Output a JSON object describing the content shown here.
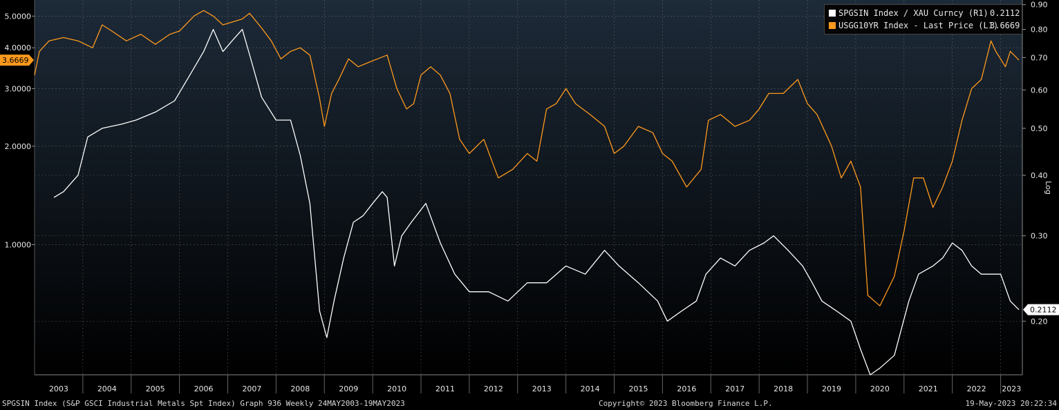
{
  "chart_data": {
    "type": "line",
    "scale": "log",
    "grid": true,
    "legend_position": "top-right",
    "xlim": [
      2003.0,
      2023.45
    ],
    "ylim_left": [
      0.4,
      5.6
    ],
    "ylim_right": [
      0.155,
      0.92
    ],
    "x_ticks": [
      "2003",
      "2004",
      "2005",
      "2006",
      "2007",
      "2008",
      "2009",
      "2010",
      "2011",
      "2012",
      "2013",
      "2014",
      "2015",
      "2016",
      "2017",
      "2018",
      "2019",
      "2020",
      "2021",
      "2022",
      "2023"
    ],
    "left_axis_ticks": [
      "1.0000",
      "2.0000",
      "3.0000",
      "4.0000",
      "5.0000"
    ],
    "right_axis_ticks": [
      "0.20",
      "0.30",
      "0.40",
      "0.50",
      "0.60",
      "0.70",
      "0.80",
      "0.90"
    ],
    "right_axis_label": "Log",
    "left_last_value_label": "3.6669",
    "right_last_value_label": "0.2112",
    "series": [
      {
        "name": "SPGSIN Index / XAU Curncy (R1)",
        "last_value": "0.2112",
        "color": "#ffffff",
        "axis": "right",
        "points": [
          [
            2003.4,
            0.36
          ],
          [
            2003.6,
            0.37
          ],
          [
            2003.9,
            0.4
          ],
          [
            2004.1,
            0.48
          ],
          [
            2004.4,
            0.5
          ],
          [
            2004.8,
            0.51
          ],
          [
            2005.1,
            0.52
          ],
          [
            2005.5,
            0.54
          ],
          [
            2005.9,
            0.57
          ],
          [
            2006.2,
            0.64
          ],
          [
            2006.5,
            0.72
          ],
          [
            2006.7,
            0.8
          ],
          [
            2006.9,
            0.72
          ],
          [
            2007.1,
            0.76
          ],
          [
            2007.3,
            0.8
          ],
          [
            2007.45,
            0.71
          ],
          [
            2007.7,
            0.58
          ],
          [
            2008.0,
            0.52
          ],
          [
            2008.3,
            0.52
          ],
          [
            2008.5,
            0.44
          ],
          [
            2008.7,
            0.35
          ],
          [
            2008.9,
            0.21
          ],
          [
            2009.05,
            0.185
          ],
          [
            2009.2,
            0.22
          ],
          [
            2009.4,
            0.27
          ],
          [
            2009.6,
            0.32
          ],
          [
            2009.8,
            0.33
          ],
          [
            2010.0,
            0.35
          ],
          [
            2010.2,
            0.37
          ],
          [
            2010.3,
            0.36
          ],
          [
            2010.45,
            0.26
          ],
          [
            2010.6,
            0.3
          ],
          [
            2010.8,
            0.32
          ],
          [
            2011.1,
            0.35
          ],
          [
            2011.4,
            0.29
          ],
          [
            2011.7,
            0.25
          ],
          [
            2012.0,
            0.23
          ],
          [
            2012.4,
            0.23
          ],
          [
            2012.8,
            0.22
          ],
          [
            2013.2,
            0.24
          ],
          [
            2013.6,
            0.24
          ],
          [
            2014.0,
            0.26
          ],
          [
            2014.4,
            0.25
          ],
          [
            2014.8,
            0.28
          ],
          [
            2015.1,
            0.26
          ],
          [
            2015.5,
            0.24
          ],
          [
            2015.9,
            0.22
          ],
          [
            2016.1,
            0.2
          ],
          [
            2016.4,
            0.21
          ],
          [
            2016.7,
            0.22
          ],
          [
            2016.9,
            0.25
          ],
          [
            2017.2,
            0.27
          ],
          [
            2017.5,
            0.26
          ],
          [
            2017.8,
            0.28
          ],
          [
            2018.1,
            0.29
          ],
          [
            2018.3,
            0.3
          ],
          [
            2018.6,
            0.28
          ],
          [
            2018.9,
            0.26
          ],
          [
            2019.1,
            0.24
          ],
          [
            2019.3,
            0.22
          ],
          [
            2019.6,
            0.21
          ],
          [
            2019.9,
            0.2
          ],
          [
            2020.1,
            0.175
          ],
          [
            2020.3,
            0.155
          ],
          [
            2020.5,
            0.16
          ],
          [
            2020.8,
            0.17
          ],
          [
            2021.1,
            0.22
          ],
          [
            2021.3,
            0.25
          ],
          [
            2021.6,
            0.26
          ],
          [
            2021.8,
            0.27
          ],
          [
            2022.0,
            0.29
          ],
          [
            2022.2,
            0.28
          ],
          [
            2022.4,
            0.26
          ],
          [
            2022.6,
            0.25
          ],
          [
            2022.8,
            0.25
          ],
          [
            2023.0,
            0.25
          ],
          [
            2023.2,
            0.22
          ],
          [
            2023.38,
            0.2112
          ]
        ]
      },
      {
        "name": "USGG10YR Index - Last Price (L1)",
        "last_value": "3.6669",
        "color": "#ff9a1e",
        "axis": "left",
        "points": [
          [
            2003.0,
            3.3
          ],
          [
            2003.1,
            3.9
          ],
          [
            2003.3,
            4.2
          ],
          [
            2003.6,
            4.3
          ],
          [
            2003.9,
            4.2
          ],
          [
            2004.2,
            4.0
          ],
          [
            2004.4,
            4.7
          ],
          [
            2004.6,
            4.5
          ],
          [
            2004.9,
            4.2
          ],
          [
            2005.2,
            4.4
          ],
          [
            2005.5,
            4.1
          ],
          [
            2005.8,
            4.4
          ],
          [
            2006.0,
            4.5
          ],
          [
            2006.3,
            5.0
          ],
          [
            2006.5,
            5.2
          ],
          [
            2006.7,
            5.0
          ],
          [
            2006.9,
            4.7
          ],
          [
            2007.1,
            4.8
          ],
          [
            2007.3,
            4.9
          ],
          [
            2007.45,
            5.1
          ],
          [
            2007.7,
            4.6
          ],
          [
            2007.9,
            4.2
          ],
          [
            2008.1,
            3.7
          ],
          [
            2008.3,
            3.9
          ],
          [
            2008.5,
            4.0
          ],
          [
            2008.7,
            3.8
          ],
          [
            2008.9,
            2.8
          ],
          [
            2009.0,
            2.3
          ],
          [
            2009.15,
            2.9
          ],
          [
            2009.3,
            3.2
          ],
          [
            2009.5,
            3.7
          ],
          [
            2009.7,
            3.5
          ],
          [
            2009.9,
            3.6
          ],
          [
            2010.1,
            3.7
          ],
          [
            2010.3,
            3.8
          ],
          [
            2010.5,
            3.0
          ],
          [
            2010.7,
            2.6
          ],
          [
            2010.85,
            2.7
          ],
          [
            2011.0,
            3.3
          ],
          [
            2011.2,
            3.5
          ],
          [
            2011.4,
            3.3
          ],
          [
            2011.6,
            2.9
          ],
          [
            2011.8,
            2.1
          ],
          [
            2012.0,
            1.9
          ],
          [
            2012.3,
            2.1
          ],
          [
            2012.6,
            1.6
          ],
          [
            2012.9,
            1.7
          ],
          [
            2013.2,
            1.9
          ],
          [
            2013.4,
            1.8
          ],
          [
            2013.6,
            2.6
          ],
          [
            2013.8,
            2.7
          ],
          [
            2014.0,
            3.0
          ],
          [
            2014.2,
            2.7
          ],
          [
            2014.5,
            2.5
          ],
          [
            2014.8,
            2.3
          ],
          [
            2015.0,
            1.9
          ],
          [
            2015.2,
            2.0
          ],
          [
            2015.5,
            2.3
          ],
          [
            2015.8,
            2.2
          ],
          [
            2016.0,
            1.9
          ],
          [
            2016.2,
            1.8
          ],
          [
            2016.5,
            1.5
          ],
          [
            2016.8,
            1.7
          ],
          [
            2016.95,
            2.4
          ],
          [
            2017.2,
            2.5
          ],
          [
            2017.5,
            2.3
          ],
          [
            2017.8,
            2.4
          ],
          [
            2018.0,
            2.6
          ],
          [
            2018.2,
            2.9
          ],
          [
            2018.5,
            2.9
          ],
          [
            2018.8,
            3.2
          ],
          [
            2019.0,
            2.7
          ],
          [
            2019.2,
            2.5
          ],
          [
            2019.5,
            2.0
          ],
          [
            2019.7,
            1.6
          ],
          [
            2019.9,
            1.8
          ],
          [
            2020.1,
            1.5
          ],
          [
            2020.25,
            0.7
          ],
          [
            2020.5,
            0.65
          ],
          [
            2020.8,
            0.8
          ],
          [
            2021.0,
            1.1
          ],
          [
            2021.2,
            1.6
          ],
          [
            2021.4,
            1.6
          ],
          [
            2021.6,
            1.3
          ],
          [
            2021.8,
            1.5
          ],
          [
            2022.0,
            1.8
          ],
          [
            2022.2,
            2.4
          ],
          [
            2022.4,
            3.0
          ],
          [
            2022.6,
            3.2
          ],
          [
            2022.8,
            4.2
          ],
          [
            2022.9,
            3.9
          ],
          [
            2023.1,
            3.5
          ],
          [
            2023.2,
            3.9
          ],
          [
            2023.38,
            3.6669
          ]
        ]
      }
    ]
  },
  "footer": {
    "left": "SPGSIN Index (S&P GSCI Industrial Metals Spt Index) Graph 936  Weekly 24MAY2003-19MAY2023",
    "center": "Copyright© 2023 Bloomberg Finance L.P.",
    "right": "19-May-2023 20:22:34"
  }
}
